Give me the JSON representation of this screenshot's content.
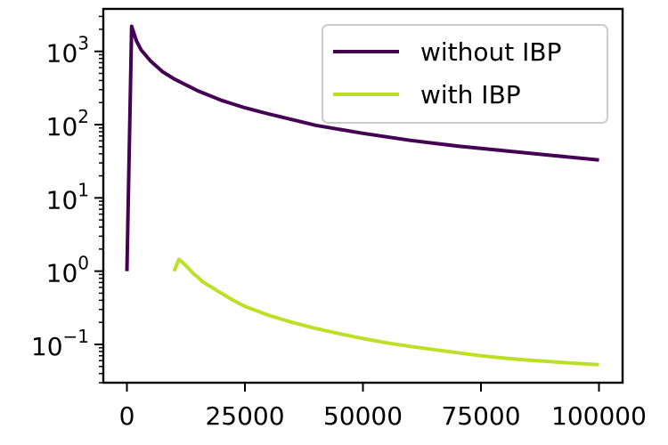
{
  "chart_data": {
    "type": "line",
    "title": "",
    "xlabel": "",
    "ylabel": "",
    "xlim": [
      -5000,
      105000
    ],
    "ylim": [
      0.03,
      3800
    ],
    "yscale": "log",
    "grid": false,
    "legend_position": "top-right",
    "x_ticks": [
      {
        "value": 0,
        "label": "0"
      },
      {
        "value": 25000,
        "label": "25000"
      },
      {
        "value": 50000,
        "label": "50000"
      },
      {
        "value": 75000,
        "label": "75000"
      },
      {
        "value": 100000,
        "label": "100000"
      }
    ],
    "y_ticks": [
      {
        "value": 0.1,
        "base": "10",
        "exp": "−1"
      },
      {
        "value": 1,
        "base": "10",
        "exp": "0"
      },
      {
        "value": 10,
        "base": "10",
        "exp": "1"
      },
      {
        "value": 100,
        "base": "10",
        "exp": "2"
      },
      {
        "value": 1000,
        "base": "10",
        "exp": "3"
      }
    ],
    "series": [
      {
        "name": "without IBP",
        "color": "#440154",
        "x": [
          0,
          1000,
          2000,
          3000,
          5000,
          7500,
          10000,
          15000,
          20000,
          25000,
          30000,
          40000,
          50000,
          60000,
          70000,
          80000,
          90000,
          100000
        ],
        "y": [
          1,
          2200,
          1400,
          1050,
          740,
          530,
          420,
          290,
          215,
          170,
          140,
          98,
          76,
          61,
          51,
          44,
          38,
          33
        ]
      },
      {
        "name": "with IBP",
        "color": "#bddf26",
        "x": [
          10000,
          11000,
          12000,
          13000,
          14000,
          15000,
          16000,
          18000,
          20000,
          22500,
          25000,
          30000,
          35000,
          40000,
          45000,
          50000,
          55000,
          60000,
          65000,
          70000,
          75000,
          80000,
          85000,
          90000,
          95000,
          100000
        ],
        "y": [
          1.0,
          1.45,
          1.28,
          1.1,
          0.93,
          0.83,
          0.72,
          0.6,
          0.5,
          0.4,
          0.33,
          0.25,
          0.2,
          0.165,
          0.14,
          0.12,
          0.105,
          0.094,
          0.085,
          0.077,
          0.07,
          0.065,
          0.061,
          0.058,
          0.055,
          0.053
        ]
      }
    ]
  }
}
